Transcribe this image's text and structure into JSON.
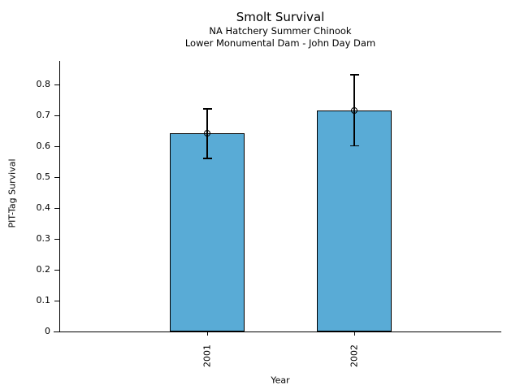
{
  "chart_data": {
    "type": "bar",
    "title": "Smolt Survival",
    "subtitles": [
      "NA Hatchery Summer Chinook",
      "Lower Monumental Dam - John Day Dam"
    ],
    "xlabel": "Year",
    "ylabel": "PIT-Tag Survival",
    "categories": [
      "2001",
      "2002"
    ],
    "values": [
      0.64,
      0.715
    ],
    "error_low": [
      0.56,
      0.6
    ],
    "error_high": [
      0.72,
      0.83
    ],
    "yticks": [
      0,
      0.1,
      0.2,
      0.3,
      0.4,
      0.5,
      0.6,
      0.7,
      0.8
    ],
    "ytick_labels": [
      "0",
      "0.1",
      "0.2",
      "0.3",
      "0.4",
      "0.5",
      "0.6",
      "0.7",
      "0.8"
    ],
    "ylim": [
      0,
      0.875
    ],
    "xtick_rotation": 90,
    "grid": false,
    "legend": null,
    "bar_color": "#59abd6",
    "bar_edge_color": "#000000",
    "axis_color": "#000000",
    "marker": "open-circle"
  }
}
